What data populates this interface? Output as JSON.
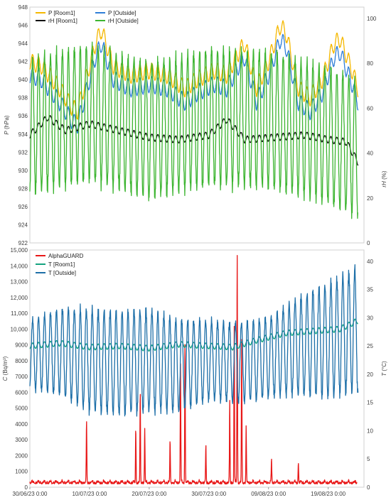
{
  "chart_data": [
    {
      "type": "line",
      "panel": "top",
      "x_start": "30/06/23 0:00",
      "x_end": "25/08/23 0:00",
      "left_axis": {
        "label_main": "P",
        "label_unit": " (hPa)",
        "ylim": [
          922,
          948
        ],
        "ticks": [
          "922",
          "924",
          "926",
          "928",
          "930",
          "932",
          "934",
          "936",
          "938",
          "940",
          "942",
          "944",
          "946",
          "948"
        ]
      },
      "right_axis": {
        "label_main": "rH",
        "label_unit": " (%)",
        "ylim": [
          0,
          105
        ],
        "ticks": [
          "0",
          "20",
          "40",
          "60",
          "80",
          "100"
        ]
      },
      "legend_position": "top-left",
      "series": [
        {
          "name": "P [Room1]",
          "axis": "left",
          "color": "#f5b800",
          "daily_amp": 0.9,
          "points": [
            [
              "30/06/23",
              942
            ],
            [
              "02/07/23",
              941.5
            ],
            [
              "05/07/23",
              939
            ],
            [
              "07/07/23",
              937
            ],
            [
              "08/07/23",
              936.5
            ],
            [
              "09/07/23",
              939
            ],
            [
              "11/07/23",
              944
            ],
            [
              "12/07/23",
              945.5
            ],
            [
              "14/07/23",
              941.5
            ],
            [
              "17/07/23",
              940.5
            ],
            [
              "20/07/23",
              941
            ],
            [
              "23/07/23",
              940.5
            ],
            [
              "26/07/23",
              939
            ],
            [
              "28/07/23",
              940
            ],
            [
              "31/07/23",
              941
            ],
            [
              "02/08/23",
              940.5
            ],
            [
              "04/08/23",
              943
            ],
            [
              "05/08/23",
              944
            ],
            [
              "07/08/23",
              939
            ],
            [
              "09/08/23",
              942
            ],
            [
              "11/08/23",
              946
            ],
            [
              "12/08/23",
              945
            ],
            [
              "14/08/23",
              939
            ],
            [
              "16/08/23",
              938
            ],
            [
              "18/08/23",
              940
            ],
            [
              "20/08/23",
              944
            ],
            [
              "21/08/23",
              944.5
            ],
            [
              "23/08/23",
              941
            ],
            [
              "24/08/23",
              939
            ]
          ]
        },
        {
          "name": "P [Outside]",
          "axis": "left",
          "color": "#2f7ed8",
          "daily_amp": 0.9,
          "points": [
            [
              "30/06/23",
              940.5
            ],
            [
              "02/07/23",
              940
            ],
            [
              "05/07/23",
              937.5
            ],
            [
              "07/07/23",
              935.5
            ],
            [
              "08/07/23",
              935
            ],
            [
              "09/07/23",
              937.5
            ],
            [
              "11/07/23",
              942.5
            ],
            [
              "12/07/23",
              944
            ],
            [
              "14/07/23",
              940
            ],
            [
              "17/07/23",
              939
            ],
            [
              "20/07/23",
              939.5
            ],
            [
              "23/07/23",
              939
            ],
            [
              "26/07/23",
              937.5
            ],
            [
              "28/07/23",
              938.5
            ],
            [
              "31/07/23",
              939.5
            ],
            [
              "02/08/23",
              939
            ],
            [
              "04/08/23",
              941.5
            ],
            [
              "05/08/23",
              942.5
            ],
            [
              "07/08/23",
              937.5
            ],
            [
              "09/08/23",
              940.5
            ],
            [
              "11/08/23",
              944.5
            ],
            [
              "12/08/23",
              943.5
            ],
            [
              "14/08/23",
              937.5
            ],
            [
              "16/08/23",
              936.5
            ],
            [
              "18/08/23",
              938.5
            ],
            [
              "20/08/23",
              942.5
            ],
            [
              "21/08/23",
              943
            ],
            [
              "23/08/23",
              939.5
            ],
            [
              "24/08/23",
              937.5
            ]
          ]
        },
        {
          "name": "rH [Room1]",
          "axis": "right",
          "color": "#111111",
          "daily_amp": 1.5,
          "points": [
            [
              "30/06/23",
              48
            ],
            [
              "03/07/23",
              56
            ],
            [
              "06/07/23",
              50
            ],
            [
              "10/07/23",
              53
            ],
            [
              "15/07/23",
              50
            ],
            [
              "20/07/23",
              47
            ],
            [
              "25/07/23",
              46
            ],
            [
              "30/07/23",
              48
            ],
            [
              "02/08/23",
              55
            ],
            [
              "05/08/23",
              46
            ],
            [
              "10/08/23",
              47
            ],
            [
              "15/08/23",
              48
            ],
            [
              "19/08/23",
              46
            ],
            [
              "22/08/23",
              45
            ],
            [
              "24/08/23",
              36
            ]
          ]
        },
        {
          "name": "rH [Outside]",
          "axis": "right",
          "color": "#3db531",
          "daily_amp": 30,
          "points": [
            [
              "30/06/23",
              52
            ],
            [
              "10/07/23",
              58
            ],
            [
              "20/07/23",
              50
            ],
            [
              "30/07/23",
              56
            ],
            [
              "09/08/23",
              55
            ],
            [
              "19/08/23",
              48
            ],
            [
              "24/08/23",
              42
            ]
          ]
        }
      ]
    },
    {
      "type": "line",
      "panel": "bottom",
      "x_start": "30/06/23 0:00",
      "x_end": "25/08/23 0:00",
      "x_tick_labels": [
        "30/06/23 0:00",
        "10/07/23 0:00",
        "20/07/23 0:00",
        "30/07/23 0:00",
        "09/08/23 0:00",
        "19/08/23 0:00"
      ],
      "left_axis": {
        "label_main": "C",
        "label_unit": " (Bq/m³)",
        "ylim": [
          0,
          15000
        ],
        "ticks": [
          "0",
          "1000",
          "2000",
          "3000",
          "4000",
          "5000",
          "6000",
          "7000",
          "8000",
          "9000",
          "10,000",
          "11,000",
          "12,000",
          "13,000",
          "14,000",
          "15,000"
        ]
      },
      "right_axis": {
        "label_main": "T",
        "label_unit": " (°C)",
        "ylim": [
          0,
          42
        ],
        "ticks": [
          "0",
          "5",
          "10",
          "15",
          "20",
          "25",
          "30",
          "35",
          "40"
        ]
      },
      "legend_position": "top-left",
      "series": [
        {
          "name": "AlphaGUARD",
          "axis": "left",
          "color": "#e81818",
          "baseline": 200,
          "peaks": [
            [
              "09/07/23 12:00",
              3900
            ],
            [
              "17/07/23 18:00",
              3500
            ],
            [
              "18/07/23 12:00",
              5800
            ],
            [
              "19/07/23 6:00",
              3400
            ],
            [
              "23/07/23 12:00",
              2700
            ],
            [
              "25/07/23 6:00",
              7500
            ],
            [
              "26/07/23 0:00",
              9000
            ],
            [
              "29/07/23 12:00",
              2300
            ],
            [
              "02/08/23 12:00",
              5200
            ],
            [
              "03/08/23 6:00",
              9800
            ],
            [
              "03/08/23 18:00",
              14700
            ],
            [
              "04/08/23 12:00",
              9000
            ],
            [
              "05/08/23 6:00",
              3500
            ],
            [
              "09/08/23 12:00",
              1500
            ],
            [
              "14/08/23 0:00",
              1300
            ]
          ]
        },
        {
          "name": "T [Room1]",
          "axis": "right",
          "color": "#14a37f",
          "daily_amp": 0.5,
          "points": [
            [
              "30/06/23",
              25
            ],
            [
              "05/07/23",
              25.5
            ],
            [
              "10/07/23",
              24.8
            ],
            [
              "15/07/23",
              25
            ],
            [
              "20/07/23",
              24.6
            ],
            [
              "25/07/23",
              25.3
            ],
            [
              "30/07/23",
              25
            ],
            [
              "03/08/23",
              24.8
            ],
            [
              "07/08/23",
              26
            ],
            [
              "12/08/23",
              27.3
            ],
            [
              "17/08/23",
              27.7
            ],
            [
              "21/08/23",
              28
            ],
            [
              "24/08/23",
              29.5
            ]
          ]
        },
        {
          "name": "T [Outside]",
          "axis": "right",
          "color": "#1d6fa8",
          "daily_amp_points": [
            [
              "30/06/23",
              6
            ],
            [
              "10/07/23",
              9
            ],
            [
              "20/07/23",
              9
            ],
            [
              "30/07/23",
              7
            ],
            [
              "09/08/23",
              7
            ],
            [
              "19/08/23",
              10
            ],
            [
              "24/08/23",
              11
            ]
          ],
          "points": [
            [
              "30/06/23",
              23.5
            ],
            [
              "05/07/23",
              24
            ],
            [
              "10/07/23",
              22.5
            ],
            [
              "15/07/23",
              22
            ],
            [
              "20/07/23",
              22.5
            ],
            [
              "25/07/23",
              21.5
            ],
            [
              "30/07/23",
              22.5
            ],
            [
              "04/08/23",
              22
            ],
            [
              "09/08/23",
              23
            ],
            [
              "14/08/23",
              25
            ],
            [
              "19/08/23",
              26
            ],
            [
              "24/08/23",
              28
            ]
          ]
        }
      ]
    }
  ]
}
